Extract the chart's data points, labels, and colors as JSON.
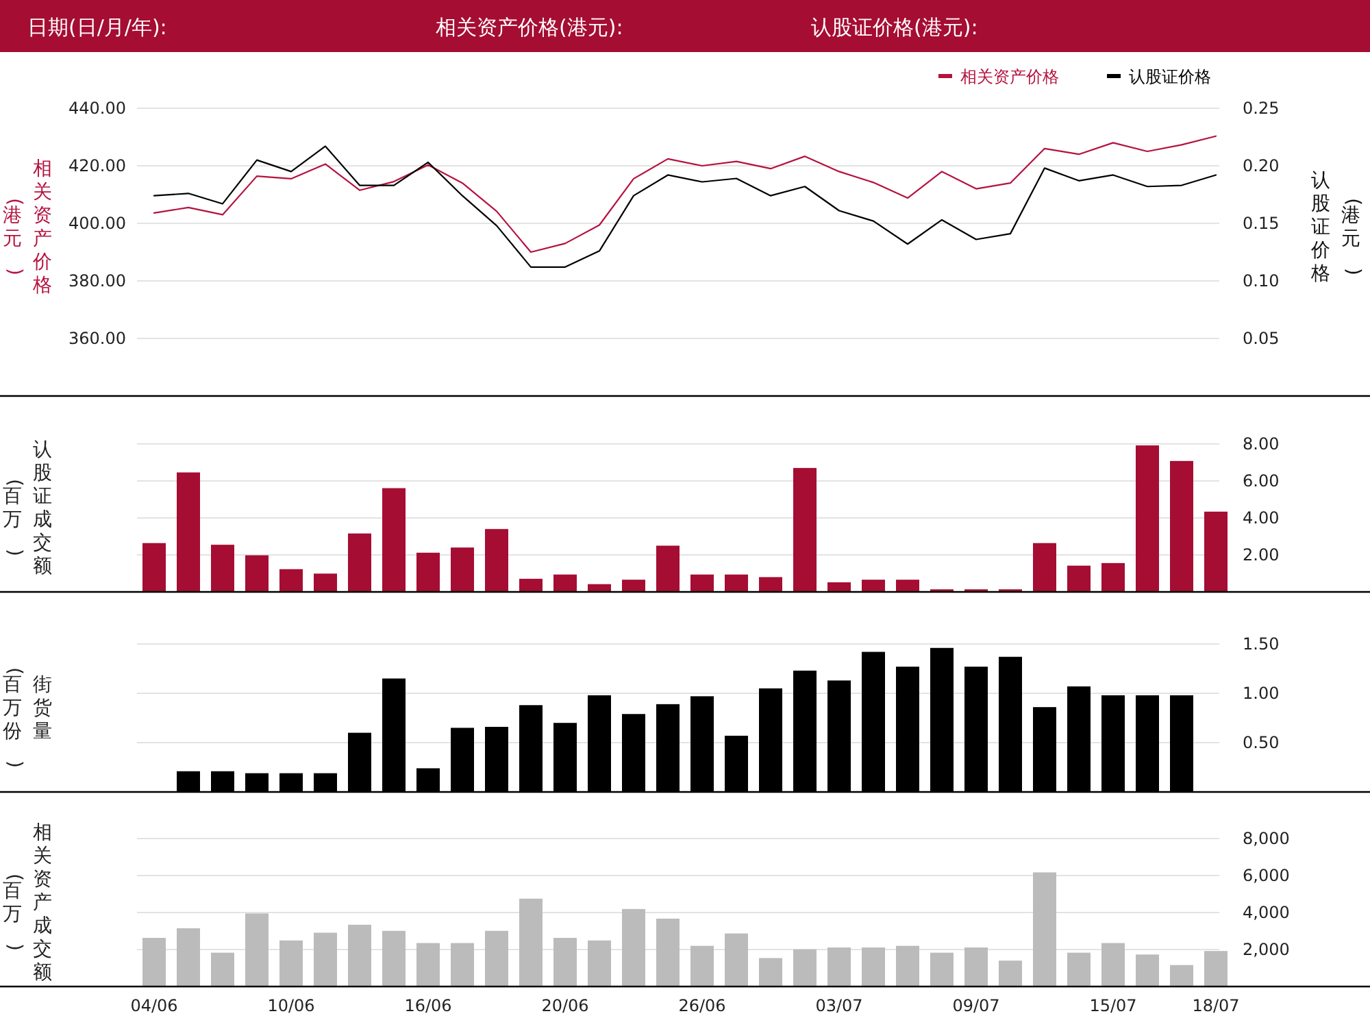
{
  "chart_data": [
    {
      "type": "line",
      "annotations": [
        "日期(日/月/年):",
        "相关资产价格(港元):",
        "认股证价格(港元):",
        "(港元)",
        "(港元)"
      ],
      "ylabel": "相关资产价格",
      "y2label": "认股证价格",
      "categories": [
        null,
        null,
        null,
        null,
        null,
        null,
        null,
        null,
        null,
        null,
        null,
        null,
        null,
        null,
        null,
        null,
        null,
        null,
        null,
        null,
        null,
        null,
        null,
        null,
        null,
        null,
        null,
        null,
        null,
        null,
        null,
        null
      ],
      "series": [
        {
          "name": "相关资产价格",
          "color": "#b5123f",
          "values": [
            403.6,
            405.5,
            403,
            416.4,
            415.5,
            420.6,
            411.5,
            414.5,
            420.3,
            414,
            404.2,
            390,
            393,
            399.4,
            415.5,
            422.4,
            420,
            421.5,
            419,
            423.3,
            418,
            414.2,
            408.8,
            418,
            412,
            414,
            426,
            424,
            428,
            425,
            427.3,
            430.3
          ]
        },
        {
          "name": "认股证价格",
          "color": "#000000",
          "axis": "y2",
          "values": [
            0.174,
            0.176,
            0.167,
            0.205,
            0.195,
            0.217,
            0.183,
            0.183,
            0.203,
            0.174,
            0.148,
            0.112,
            0.112,
            0.126,
            0.174,
            0.192,
            0.186,
            0.189,
            0.174,
            0.182,
            0.161,
            0.152,
            0.132,
            0.153,
            0.136,
            0.141,
            0.198,
            0.187,
            0.192,
            0.182,
            0.183,
            0.192
          ]
        }
      ],
      "ylim": [
        340,
        440
      ],
      "yticks": [
        {
          "value": 360,
          "label": "360.00"
        },
        {
          "value": 380,
          "label": "380.00"
        },
        {
          "value": 400,
          "label": "400.00"
        },
        {
          "value": 420,
          "label": "420.00"
        },
        {
          "value": 440,
          "label": "440.00"
        }
      ],
      "y2lim": [
        0,
        0.25
      ],
      "y2ticks": [
        0.05,
        {
          "value": 0.1,
          "label": "0.10"
        },
        0.15,
        {
          "value": 0.2,
          "label": "0.20"
        },
        0.25
      ],
      "grid": "y",
      "legend": "top right",
      "tick_labels": "y"
    },
    {
      "type": "bar",
      "ylabel": "认股证成交额",
      "annotations": [
        "(百万)"
      ],
      "color": "#a50d33",
      "categories": [
        null,
        null,
        null,
        null,
        null,
        null,
        null,
        null,
        null,
        null,
        null,
        null,
        null,
        null,
        null,
        null,
        null,
        null,
        null,
        null,
        null,
        null,
        null,
        null,
        null,
        null,
        null,
        null,
        null,
        null,
        null,
        null
      ],
      "values": [
        2.64,
        6.46,
        2.55,
        1.98,
        1.23,
        0.99,
        3.16,
        5.61,
        2.12,
        2.4,
        3.4,
        0.71,
        0.94,
        0.42,
        0.66,
        2.5,
        0.94,
        0.94,
        0.8,
        6.7,
        0.52,
        0.66,
        0.66,
        0.14,
        0.14,
        0.14,
        2.64,
        1.42,
        1.56,
        7.92,
        7.08,
        4.34
      ],
      "ylim": [
        0,
        8
      ],
      "yticks": [
        {
          "value": 2,
          "label": "2.00"
        },
        {
          "value": 4,
          "label": "4.00"
        },
        {
          "value": 6,
          "label": "6.00"
        },
        {
          "value": 8,
          "label": "8.00"
        }
      ],
      "grid": "y",
      "tick_labels": "y"
    },
    {
      "type": "bar",
      "ylabel": "街货量",
      "annotations": [
        "(百万份)"
      ],
      "color": "#000000",
      "categories": [
        null,
        null,
        null,
        null,
        null,
        null,
        null,
        null,
        null,
        null,
        null,
        null,
        null,
        null,
        null,
        null,
        null,
        null,
        null,
        null,
        null,
        null,
        null,
        null,
        null,
        null,
        null,
        null,
        null,
        null,
        null,
        null
      ],
      "values": [
        null,
        0.21,
        0.21,
        0.19,
        0.19,
        0.19,
        0.6,
        1.15,
        0.24,
        0.65,
        0.66,
        0.88,
        0.7,
        0.98,
        0.79,
        0.89,
        0.97,
        0.57,
        1.05,
        1.23,
        1.13,
        1.42,
        1.27,
        1.46,
        1.27,
        1.37,
        0.86,
        1.07,
        0.98,
        0.98,
        0.98,
        null
      ],
      "ylim": [
        0,
        1.5
      ],
      "yticks": [
        {
          "value": 0.5,
          "label": "0.50"
        },
        {
          "value": 1,
          "label": "1.00"
        },
        {
          "value": 1.5,
          "label": "1.50"
        }
      ],
      "grid": "y",
      "tick_labels": "y"
    },
    {
      "type": "bar",
      "ylabel": "相关资产成交额",
      "annotations": [
        "(百万)"
      ],
      "color": "#bbbbbb",
      "categories": [
        "04/06",
        null,
        null,
        null,
        "10/06",
        null,
        null,
        null,
        "16/06",
        null,
        null,
        null,
        "20/06",
        null,
        null,
        null,
        "26/06",
        null,
        null,
        null,
        "03/07",
        null,
        null,
        null,
        "09/07",
        null,
        null,
        null,
        "15/07",
        null,
        null,
        "18/07"
      ],
      "values": [
        2630,
        3150,
        1830,
        3950,
        2490,
        2910,
        3340,
        3010,
        2350,
        2350,
        3010,
        4750,
        2630,
        2490,
        4190,
        3670,
        2200,
        2870,
        1540,
        2010,
        2110,
        2110,
        2200,
        1830,
        2110,
        1400,
        6170,
        1830,
        2350,
        1730,
        1160,
        1920
      ],
      "ylim": [
        0,
        8000
      ],
      "yticks": [
        {
          "value": 2000,
          "label": "2,000"
        },
        {
          "value": 4000,
          "label": "4,000"
        },
        {
          "value": 6000,
          "label": "6,000"
        },
        {
          "value": 8000,
          "label": "8,000"
        }
      ],
      "grid": "y"
    }
  ]
}
